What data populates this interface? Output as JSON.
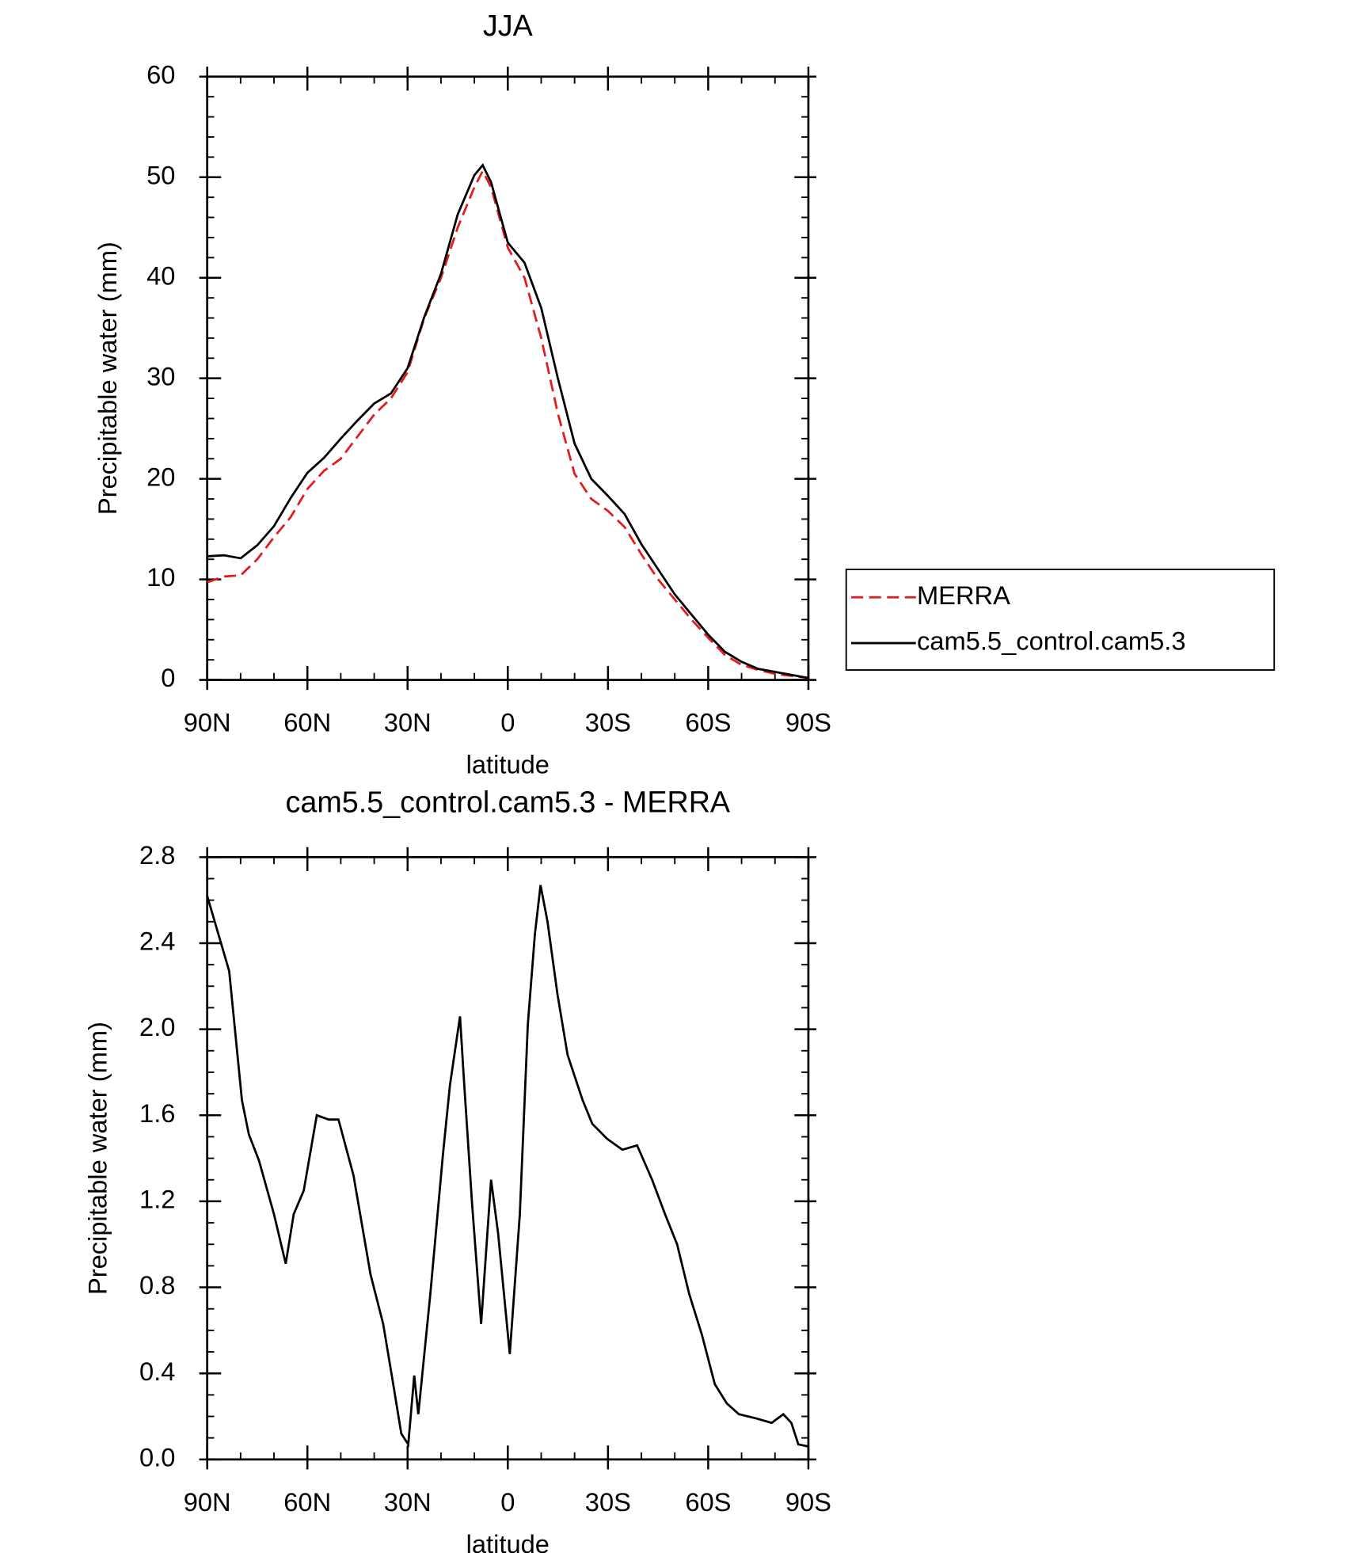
{
  "chart_data": [
    {
      "type": "line",
      "title": "JJA",
      "xlabel": "latitude",
      "ylabel": "Precipitable water (mm)",
      "xlim": [
        90,
        -90
      ],
      "ylim": [
        0,
        60
      ],
      "xticks": [
        {
          "value": 90,
          "label": "90N"
        },
        {
          "value": 60,
          "label": "60N"
        },
        {
          "value": 30,
          "label": "30N"
        },
        0,
        {
          "value": -30,
          "label": "30S"
        },
        {
          "value": -60,
          "label": "60S"
        },
        {
          "value": -90,
          "label": "90S"
        }
      ],
      "yticks": [
        0,
        10,
        20,
        30,
        40,
        50,
        60
      ],
      "x": [
        90,
        85,
        80,
        75,
        70,
        65,
        60,
        55,
        50,
        45,
        40,
        35,
        30,
        25,
        20,
        15,
        10,
        7.5,
        5,
        0,
        -5,
        -10,
        -15,
        -20,
        -25,
        -30,
        -35,
        -40,
        -45,
        -50,
        -55,
        -60,
        -65,
        -70,
        -75,
        -80,
        -85,
        -90
      ],
      "series": [
        {
          "name": "MERRA",
          "color": "#e41a1c",
          "dash": true,
          "values": [
            9.7,
            10.3,
            10.4,
            12,
            14.2,
            16.2,
            19.0,
            20.8,
            22,
            24.2,
            26.4,
            28,
            30.6,
            36,
            40,
            45,
            49,
            50.6,
            49,
            43,
            40,
            34,
            26.5,
            20.5,
            18,
            16.8,
            15.2,
            12.5,
            10,
            8,
            6,
            4.2,
            2.5,
            1.5,
            1,
            0.6,
            0.4,
            0.2
          ]
        },
        {
          "name": "cam5.5_control.cam5.3",
          "color": "#000000",
          "dash": false,
          "values": [
            12.3,
            12.4,
            12.1,
            13.4,
            15.3,
            18.1,
            20.6,
            22.1,
            24.0,
            25.8,
            27.5,
            28.5,
            31.0,
            36.1,
            40.4,
            46.3,
            50.2,
            51.2,
            49.5,
            43.5,
            41.5,
            37,
            30,
            23.5,
            20,
            18.3,
            16.5,
            13.5,
            11,
            8.5,
            6.5,
            4.5,
            2.8,
            1.8,
            1.1,
            0.8,
            0.5,
            0.2
          ]
        }
      ]
    },
    {
      "type": "line",
      "title": "cam5.5_control.cam5.3 - MERRA",
      "xlabel": "latitude",
      "ylabel": "Precipitable water (mm)",
      "xlim": [
        90,
        -90
      ],
      "ylim": [
        0,
        2.8
      ],
      "xticks": [
        {
          "value": 90,
          "label": "90N"
        },
        {
          "value": 60,
          "label": "60N"
        },
        {
          "value": 30,
          "label": "30N"
        },
        0,
        {
          "value": -30,
          "label": "30S"
        },
        {
          "value": -60,
          "label": "60S"
        },
        {
          "value": -90,
          "label": "90S"
        }
      ],
      "yticks": [
        {
          "value": 0,
          "label": "0.0"
        },
        0.4,
        0.8,
        {
          "value": 1.2,
          "label": "1.2"
        },
        1.6,
        {
          "value": 2.0,
          "label": "2.0"
        },
        2.4,
        2.8
      ],
      "x": [
        90,
        83.4,
        79.6,
        77.5,
        74.5,
        70.0,
        66.5,
        64.1,
        61.1,
        57.2,
        53.6,
        50.7,
        46.2,
        41.1,
        37.3,
        34.3,
        31.9,
        29.8,
        28.0,
        26.8,
        23.2,
        19.4,
        17.3,
        14.3,
        13.1,
        10.7,
        8.0,
        5.0,
        2.9,
        -0.6,
        -3.6,
        -6.0,
        -8.1,
        -9.8,
        -11.9,
        -14.9,
        -17.9,
        -22.4,
        -25.3,
        -29.8,
        -34.3,
        -38.7,
        -43.2,
        -47.1,
        -50.7,
        -54.3,
        -58.1,
        -62.0,
        -65.6,
        -69.2,
        -74.5,
        -79.0,
        -82.5,
        -84.9,
        -87.0,
        -90
      ],
      "color": "#000000",
      "values": [
        2.62,
        2.27,
        1.67,
        1.51,
        1.39,
        1.14,
        0.91,
        1.14,
        1.25,
        1.6,
        1.58,
        1.58,
        1.32,
        0.86,
        0.63,
        0.35,
        0.12,
        0.07,
        0.39,
        0.21,
        0.77,
        1.42,
        1.74,
        2.06,
        1.76,
        1.19,
        0.63,
        1.3,
        1.05,
        0.49,
        1.14,
        2.02,
        2.44,
        2.67,
        2.5,
        2.16,
        1.88,
        1.67,
        1.56,
        1.49,
        1.44,
        1.46,
        1.3,
        1.14,
        1.0,
        0.77,
        0.58,
        0.35,
        0.26,
        0.21,
        0.19,
        0.17,
        0.21,
        0.17,
        0.07,
        0.06
      ]
    }
  ]
}
